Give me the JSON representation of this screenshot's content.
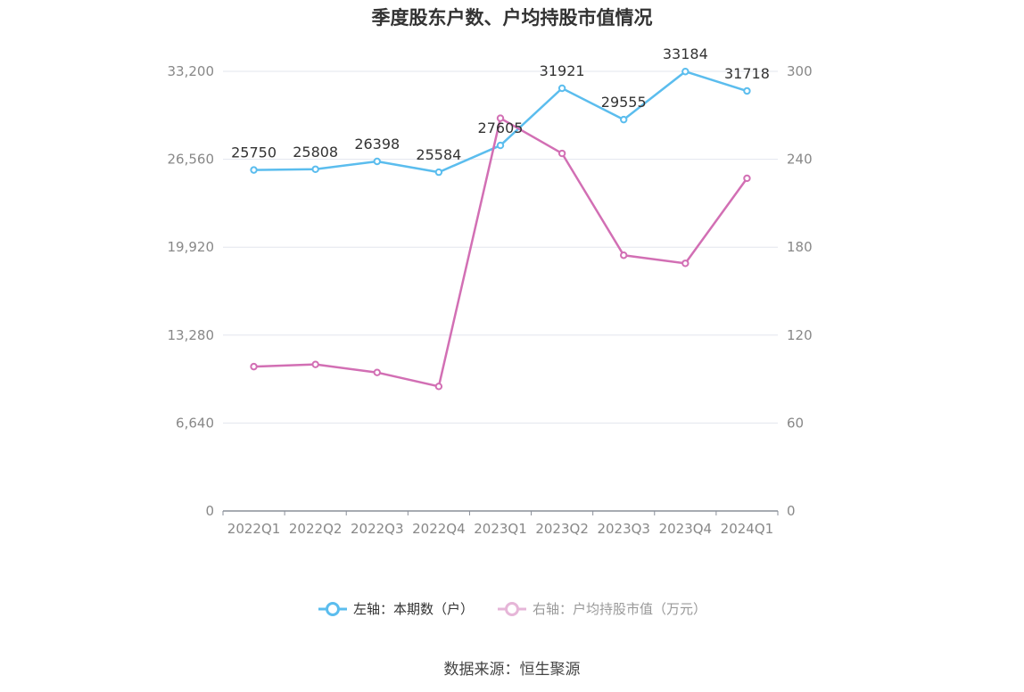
{
  "chart_data": {
    "type": "line",
    "title": "季度股东户数、户均持股市值情况",
    "categories": [
      "2022Q1",
      "2022Q2",
      "2022Q3",
      "2022Q4",
      "2023Q1",
      "2023Q2",
      "2023Q3",
      "2023Q4",
      "2024Q1"
    ],
    "y_left": {
      "ticks": [
        "0",
        "6,640",
        "13,280",
        "19,920",
        "26,560",
        "33,200"
      ],
      "ylim": [
        0,
        33200
      ]
    },
    "y_right": {
      "ticks": [
        "0",
        "60",
        "120",
        "180",
        "240",
        "300"
      ],
      "ylim": [
        0,
        300
      ]
    },
    "grid": true,
    "legend_position": "bottom",
    "series": [
      {
        "name": "左轴：本期数（户）",
        "axis": "left",
        "color": "#5bbdee",
        "values": [
          25750,
          25808,
          26398,
          25584,
          27605,
          31921,
          29555,
          33184,
          31718
        ],
        "labels": [
          "25750",
          "25808",
          "26398",
          "25584",
          "27605",
          "31921",
          "29555",
          "33184",
          "31718"
        ]
      },
      {
        "name": "右轴：户均持股市值（万元）",
        "axis": "right",
        "color": "#d26fb4",
        "values": [
          98.5,
          100,
          94.5,
          85,
          268,
          244,
          174.5,
          169,
          227
        ]
      }
    ]
  },
  "source": "数据来源：恒生聚源"
}
